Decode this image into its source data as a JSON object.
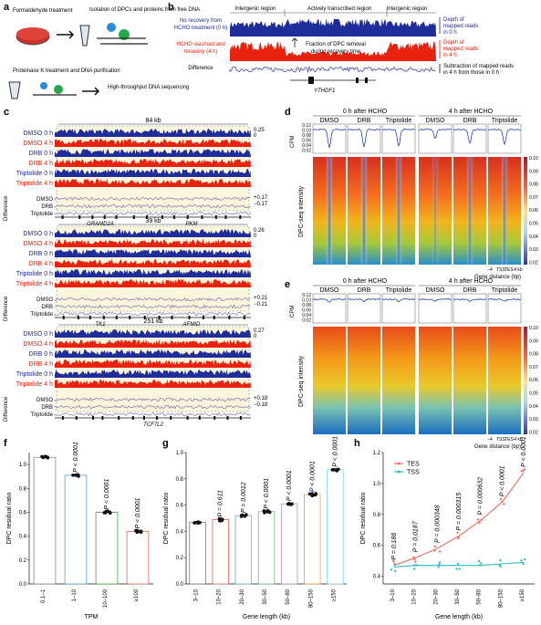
{
  "panel_labels": {
    "a": "a",
    "b": "b",
    "c": "c",
    "d": "d",
    "e": "e",
    "f": "f",
    "g": "g",
    "h": "h"
  },
  "panel_a": {
    "steps": [
      "Formaldehyde treatment",
      "Isolation of DPCs and proteins from free DNA",
      "Proteinase K treatment and DNA purification",
      "High-throughput DNA sequencing"
    ]
  },
  "panel_b": {
    "regions": [
      "Intergenic region",
      "Actively transcribed region",
      "Intergenic region"
    ],
    "track_labels": [
      {
        "lines": [
          "No recovery from",
          "HCHO treatment (0 h)"
        ],
        "color": "#1f2d9a"
      },
      {
        "lines": [
          "HCHO washout and",
          "recovery (4 h)"
        ],
        "color": "#e8220e"
      },
      {
        "lines": [
          "Difference"
        ],
        "color": "#111111"
      }
    ],
    "annotation_lines": [
      "Fraction of DPC removal",
      "during recovery time"
    ],
    "gene": "YTHDF1",
    "right_notes": [
      {
        "lines": [
          "Depth of",
          "mapped reads",
          "in 0 h"
        ],
        "color": "#1f2d9a"
      },
      {
        "lines": [
          "Depth of",
          "mapped reads",
          "in 4 h"
        ],
        "color": "#e8220e"
      },
      {
        "lines": [
          "Subtraction of mapped reads",
          "in 4 h from those in 0 h"
        ],
        "color": "#111111"
      }
    ]
  },
  "panel_c": {
    "track_names": [
      "DMSO 0 h",
      "DMSO 4 h",
      "DRB 0 h",
      "DRB 4 h",
      "Triptolide 0 h",
      "Triptolide 4 h"
    ],
    "diff_names": [
      "DMSO",
      "DRB",
      "Triptolide"
    ],
    "diff_title": "Difference",
    "loci": [
      {
        "span": "84 kb",
        "genes": [
          "GRAMD2A",
          "PKM"
        ],
        "ymax": "0.25",
        "ymin": "0",
        "dmax": "+0.17",
        "dmin": "−0.17"
      },
      {
        "span": "39 kb",
        "genes": [
          "TK1",
          "AFMID"
        ],
        "ymax": "0.26",
        "ymin": "0",
        "dmax": "+0.21",
        "dmin": "−0.21"
      },
      {
        "span": "251 kb",
        "genes": [
          "TCF7L2"
        ],
        "ymax": "0.27",
        "ymin": "0",
        "dmax": "+0.18",
        "dmin": "−0.18"
      }
    ]
  },
  "panel_d": {
    "timepoints": [
      "0 h after HCHO",
      "4 h after HCHO"
    ],
    "treatments": [
      "DMSO",
      "DRB",
      "Triptolide",
      "DMSO",
      "DRB",
      "Triptolide"
    ],
    "cpm_label": "CPM",
    "cpm_ticks": [
      "0.12",
      "0.10",
      "0.08",
      "0.06",
      "0.04",
      "0.02"
    ],
    "intensity_label": "DPC-seq intensity",
    "colorbar_ticks": [
      "0.10",
      "0.09",
      "0.08",
      "0.07",
      "0.06",
      "0.05",
      "0.04",
      "0.03",
      "0.02"
    ],
    "x_ticks": [
      "−4",
      "TSS",
      "TES",
      "4 kb"
    ],
    "xlabel": "Gene distance (bp)"
  },
  "panel_e": {
    "timepoints": [
      "0 h after HCHO",
      "4 h after HCHO"
    ],
    "treatments": [
      "DMSO",
      "DRB",
      "Triptolide",
      "DMSO",
      "DRB",
      "Triptolide"
    ],
    "cpm_label": "CPM",
    "cpm_ticks": [
      "0.12",
      "0.10",
      "0.08",
      "0.06",
      "0.04",
      "0.02"
    ],
    "intensity_label": "DPC-seq intensity",
    "colorbar_ticks": [
      "0.10",
      "0.09",
      "0.08",
      "0.07",
      "0.06",
      "0.05",
      "0.04",
      "0.03",
      "0.02"
    ],
    "x_ticks": [
      "−4",
      "TSS",
      "TES",
      "4 kb"
    ],
    "xlabel": "Gene distance (bp)"
  },
  "chart_data": [
    {
      "panel": "f",
      "type": "bar",
      "categories": [
        "0.1–1",
        "1–10",
        "10–100",
        "≥100"
      ],
      "values": [
        1.06,
        0.91,
        0.6,
        0.44
      ],
      "colors": [
        "#8a8a8a",
        "#4aa3cf",
        "#3aa84a",
        "#e06a55"
      ],
      "pvalues": [
        "",
        "P < 0.0001",
        "P < 0.0001",
        "P < 0.0001"
      ],
      "xlabel": "TPM",
      "ylabel": "DPC residual ratio",
      "ylim": [
        0,
        1.1
      ],
      "yticks": [
        0,
        0.2,
        0.4,
        0.6,
        0.8,
        1.0
      ]
    },
    {
      "panel": "g",
      "type": "bar",
      "categories": [
        "3–10",
        "10–20",
        "20–30",
        "30–50",
        "50–80",
        "80–150",
        "≥150"
      ],
      "values": [
        0.47,
        0.49,
        0.52,
        0.55,
        0.61,
        0.68,
        0.87
      ],
      "colors": [
        "#777777",
        "#e06a55",
        "#6fa8dc",
        "#6fbf73",
        "#b48ede",
        "#f0a040",
        "#7fd3e6"
      ],
      "pvalues": [
        "",
        "P = 0.611",
        "P = 0.0012",
        "P < 0.0001",
        "P < 0.0001",
        "P < 0.0001",
        "P < 0.0001"
      ],
      "xlabel": "Gene length (kb)",
      "ylabel": "DPC residual ratio",
      "ylim": [
        0,
        1.0
      ],
      "yticks": [
        0,
        0.2,
        0.4,
        0.6,
        0.8,
        1.0
      ]
    },
    {
      "panel": "h",
      "type": "scatter",
      "categories": [
        "3–10",
        "10–20",
        "20–30",
        "30–50",
        "50–80",
        "80–150",
        "≥150"
      ],
      "series": [
        {
          "name": "TES",
          "color": "#f07060",
          "values": [
            0.47,
            0.52,
            0.58,
            0.66,
            0.76,
            0.88,
            1.07
          ]
        },
        {
          "name": "TSS",
          "color": "#2bbcc4",
          "values": [
            0.46,
            0.47,
            0.47,
            0.47,
            0.47,
            0.48,
            0.49
          ]
        }
      ],
      "pvalues": [
        "P = 0.186",
        "P = 0.0187",
        "P = 0.000348",
        "P = 0.000315",
        "P = 0.000632",
        "P < 0.0001",
        "P < 0.0001"
      ],
      "xlabel": "Gene length (kb)",
      "ylabel": "DPC residual ratio",
      "ylim": [
        0.35,
        1.2
      ],
      "yticks": [
        0.4,
        0.6,
        0.8,
        1.0,
        1.2
      ]
    }
  ]
}
